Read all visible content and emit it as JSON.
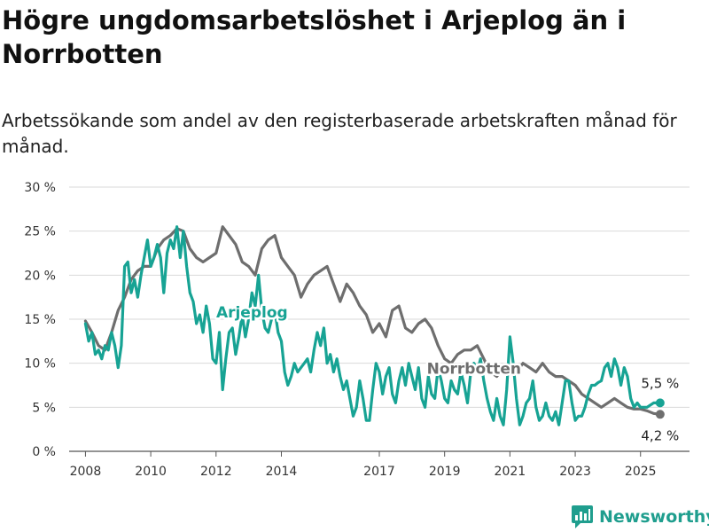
{
  "title": "Högre ungdomsarbetslöshet i Arjeplog än i Norrbotten",
  "subtitle": "Arbetssökande som andel av den registerbaserade arbetskraften månad för månad.",
  "brand": {
    "name": "Newsworthy",
    "icon": "newsworthy-logo-icon",
    "color": "#1f9e8e"
  },
  "chart_data": {
    "type": "line",
    "title": "Högre ungdomsarbetslöshet i Arjeplog än i Norrbotten",
    "subtitle": "Arbetssökande som andel av den registerbaserade arbetskraften månad för månad.",
    "xlabel": "",
    "ylabel": "",
    "xlim": [
      2007.5,
      2026.5
    ],
    "ylim": [
      0,
      30
    ],
    "yticks": [
      0,
      5,
      10,
      15,
      20,
      25,
      30
    ],
    "ytick_labels": [
      "0 %",
      "5 %",
      "10 %",
      "15 %",
      "20 %",
      "25 %",
      "30 %"
    ],
    "xticks": [
      2008,
      2010,
      2012,
      2014,
      2017,
      2019,
      2021,
      2023,
      2025
    ],
    "xtick_labels": [
      "2008",
      "2010",
      "2012",
      "2014",
      "2017",
      "2019",
      "2021",
      "2023",
      "2025"
    ],
    "grid": true,
    "series": [
      {
        "name": "Norrbotten",
        "color": "#6e6e6e",
        "end_label": "4,2 %",
        "points": [
          [
            2008.0,
            14.8
          ],
          [
            2008.2,
            13.5
          ],
          [
            2008.4,
            12.0
          ],
          [
            2008.6,
            11.5
          ],
          [
            2008.8,
            13.5
          ],
          [
            2009.0,
            16.0
          ],
          [
            2009.2,
            17.5
          ],
          [
            2009.4,
            19.5
          ],
          [
            2009.6,
            20.5
          ],
          [
            2009.8,
            21.0
          ],
          [
            2010.0,
            21.0
          ],
          [
            2010.2,
            23.0
          ],
          [
            2010.4,
            24.0
          ],
          [
            2010.6,
            24.5
          ],
          [
            2010.8,
            25.3
          ],
          [
            2011.0,
            25.0
          ],
          [
            2011.2,
            23.0
          ],
          [
            2011.4,
            22.0
          ],
          [
            2011.6,
            21.5
          ],
          [
            2011.8,
            22.0
          ],
          [
            2012.0,
            22.5
          ],
          [
            2012.2,
            25.5
          ],
          [
            2012.4,
            24.5
          ],
          [
            2012.6,
            23.5
          ],
          [
            2012.8,
            21.5
          ],
          [
            2013.0,
            21.0
          ],
          [
            2013.2,
            20.0
          ],
          [
            2013.4,
            23.0
          ],
          [
            2013.6,
            24.0
          ],
          [
            2013.8,
            24.5
          ],
          [
            2014.0,
            22.0
          ],
          [
            2014.2,
            21.0
          ],
          [
            2014.4,
            20.0
          ],
          [
            2014.6,
            17.5
          ],
          [
            2014.8,
            19.0
          ],
          [
            2015.0,
            20.0
          ],
          [
            2015.2,
            20.5
          ],
          [
            2015.4,
            21.0
          ],
          [
            2015.6,
            19.0
          ],
          [
            2015.8,
            17.0
          ],
          [
            2016.0,
            19.0
          ],
          [
            2016.2,
            18.0
          ],
          [
            2016.4,
            16.5
          ],
          [
            2016.6,
            15.5
          ],
          [
            2016.8,
            13.5
          ],
          [
            2017.0,
            14.5
          ],
          [
            2017.2,
            13.0
          ],
          [
            2017.4,
            16.0
          ],
          [
            2017.6,
            16.5
          ],
          [
            2017.8,
            14.0
          ],
          [
            2018.0,
            13.5
          ],
          [
            2018.2,
            14.5
          ],
          [
            2018.4,
            15.0
          ],
          [
            2018.6,
            14.0
          ],
          [
            2018.8,
            12.0
          ],
          [
            2019.0,
            10.5
          ],
          [
            2019.2,
            10.0
          ],
          [
            2019.4,
            11.0
          ],
          [
            2019.6,
            11.5
          ],
          [
            2019.8,
            11.5
          ],
          [
            2020.0,
            12.0
          ],
          [
            2020.2,
            10.5
          ],
          [
            2020.4,
            9.0
          ],
          [
            2020.6,
            8.5
          ],
          [
            2020.8,
            9.5
          ],
          [
            2021.0,
            9.5
          ],
          [
            2021.2,
            9.0
          ],
          [
            2021.4,
            10.0
          ],
          [
            2021.6,
            9.5
          ],
          [
            2021.8,
            9.0
          ],
          [
            2022.0,
            10.0
          ],
          [
            2022.2,
            9.0
          ],
          [
            2022.4,
            8.5
          ],
          [
            2022.6,
            8.5
          ],
          [
            2022.8,
            8.0
          ],
          [
            2023.0,
            7.5
          ],
          [
            2023.2,
            6.5
          ],
          [
            2023.4,
            6.0
          ],
          [
            2023.6,
            5.5
          ],
          [
            2023.8,
            5.0
          ],
          [
            2024.0,
            5.5
          ],
          [
            2024.2,
            6.0
          ],
          [
            2024.4,
            5.5
          ],
          [
            2024.6,
            5.0
          ],
          [
            2024.8,
            4.8
          ],
          [
            2025.0,
            4.8
          ],
          [
            2025.2,
            4.6
          ],
          [
            2025.4,
            4.3
          ],
          [
            2025.6,
            4.2
          ]
        ]
      },
      {
        "name": "Arjeplog",
        "color": "#17a394",
        "end_label": "5,5 %",
        "points": [
          [
            2008.0,
            14.5
          ],
          [
            2008.1,
            12.5
          ],
          [
            2008.2,
            13.5
          ],
          [
            2008.3,
            11.0
          ],
          [
            2008.4,
            11.5
          ],
          [
            2008.5,
            10.5
          ],
          [
            2008.6,
            12.0
          ],
          [
            2008.7,
            11.5
          ],
          [
            2008.8,
            13.5
          ],
          [
            2008.9,
            12.0
          ],
          [
            2009.0,
            9.5
          ],
          [
            2009.1,
            12.0
          ],
          [
            2009.2,
            21.0
          ],
          [
            2009.3,
            21.5
          ],
          [
            2009.4,
            18.0
          ],
          [
            2009.5,
            19.5
          ],
          [
            2009.6,
            17.5
          ],
          [
            2009.7,
            20.0
          ],
          [
            2009.8,
            22.0
          ],
          [
            2009.9,
            24.0
          ],
          [
            2010.0,
            21.0
          ],
          [
            2010.1,
            22.0
          ],
          [
            2010.2,
            23.5
          ],
          [
            2010.3,
            22.0
          ],
          [
            2010.4,
            18.0
          ],
          [
            2010.5,
            22.5
          ],
          [
            2010.6,
            24.0
          ],
          [
            2010.7,
            23.0
          ],
          [
            2010.8,
            25.5
          ],
          [
            2010.9,
            22.0
          ],
          [
            2011.0,
            25.0
          ],
          [
            2011.1,
            21.0
          ],
          [
            2011.2,
            18.0
          ],
          [
            2011.3,
            17.0
          ],
          [
            2011.4,
            14.5
          ],
          [
            2011.5,
            15.5
          ],
          [
            2011.6,
            13.5
          ],
          [
            2011.7,
            16.5
          ],
          [
            2011.8,
            14.5
          ],
          [
            2011.9,
            10.5
          ],
          [
            2012.0,
            10.0
          ],
          [
            2012.1,
            13.5
          ],
          [
            2012.2,
            7.0
          ],
          [
            2012.3,
            10.5
          ],
          [
            2012.4,
            13.5
          ],
          [
            2012.5,
            14.0
          ],
          [
            2012.6,
            11.0
          ],
          [
            2012.7,
            13.0
          ],
          [
            2012.8,
            15.5
          ],
          [
            2012.9,
            13.0
          ],
          [
            2013.0,
            15.0
          ],
          [
            2013.1,
            18.0
          ],
          [
            2013.2,
            16.5
          ],
          [
            2013.3,
            20.0
          ],
          [
            2013.4,
            16.0
          ],
          [
            2013.5,
            14.0
          ],
          [
            2013.6,
            13.5
          ],
          [
            2013.7,
            15.0
          ],
          [
            2013.8,
            16.0
          ],
          [
            2013.9,
            13.5
          ],
          [
            2014.0,
            12.5
          ],
          [
            2014.1,
            9.0
          ],
          [
            2014.2,
            7.5
          ],
          [
            2014.3,
            8.5
          ],
          [
            2014.4,
            10.0
          ],
          [
            2014.5,
            9.0
          ],
          [
            2014.6,
            9.5
          ],
          [
            2014.7,
            10.0
          ],
          [
            2014.8,
            10.5
          ],
          [
            2014.9,
            9.0
          ],
          [
            2015.0,
            11.5
          ],
          [
            2015.1,
            13.5
          ],
          [
            2015.2,
            12.0
          ],
          [
            2015.3,
            14.0
          ],
          [
            2015.4,
            10.0
          ],
          [
            2015.5,
            11.0
          ],
          [
            2015.6,
            9.0
          ],
          [
            2015.7,
            10.5
          ],
          [
            2015.8,
            8.5
          ],
          [
            2015.9,
            7.0
          ],
          [
            2016.0,
            8.0
          ],
          [
            2016.1,
            6.0
          ],
          [
            2016.2,
            4.0
          ],
          [
            2016.3,
            5.0
          ],
          [
            2016.4,
            8.0
          ],
          [
            2016.5,
            6.0
          ],
          [
            2016.6,
            3.5
          ],
          [
            2016.7,
            3.5
          ],
          [
            2016.8,
            7.0
          ],
          [
            2016.9,
            10.0
          ],
          [
            2017.0,
            9.0
          ],
          [
            2017.1,
            6.5
          ],
          [
            2017.2,
            8.5
          ],
          [
            2017.3,
            9.5
          ],
          [
            2017.4,
            6.5
          ],
          [
            2017.5,
            5.5
          ],
          [
            2017.6,
            8.0
          ],
          [
            2017.7,
            9.5
          ],
          [
            2017.8,
            7.5
          ],
          [
            2017.9,
            10.0
          ],
          [
            2018.0,
            8.5
          ],
          [
            2018.1,
            7.0
          ],
          [
            2018.2,
            9.5
          ],
          [
            2018.3,
            6.0
          ],
          [
            2018.4,
            5.0
          ],
          [
            2018.5,
            8.5
          ],
          [
            2018.6,
            6.5
          ],
          [
            2018.7,
            6.0
          ],
          [
            2018.8,
            9.5
          ],
          [
            2018.9,
            8.0
          ],
          [
            2019.0,
            6.0
          ],
          [
            2019.1,
            5.5
          ],
          [
            2019.2,
            8.0
          ],
          [
            2019.3,
            7.0
          ],
          [
            2019.4,
            6.5
          ],
          [
            2019.5,
            9.0
          ],
          [
            2019.6,
            7.5
          ],
          [
            2019.7,
            5.5
          ],
          [
            2019.8,
            9.0
          ],
          [
            2019.9,
            10.0
          ],
          [
            2020.0,
            9.0
          ],
          [
            2020.1,
            10.5
          ],
          [
            2020.2,
            8.0
          ],
          [
            2020.3,
            6.0
          ],
          [
            2020.4,
            4.5
          ],
          [
            2020.5,
            3.5
          ],
          [
            2020.6,
            6.0
          ],
          [
            2020.7,
            4.0
          ],
          [
            2020.8,
            3.0
          ],
          [
            2020.9,
            7.0
          ],
          [
            2021.0,
            13.0
          ],
          [
            2021.1,
            10.0
          ],
          [
            2021.2,
            6.0
          ],
          [
            2021.3,
            3.0
          ],
          [
            2021.4,
            4.0
          ],
          [
            2021.5,
            5.5
          ],
          [
            2021.6,
            6.0
          ],
          [
            2021.7,
            8.0
          ],
          [
            2021.8,
            5.0
          ],
          [
            2021.9,
            3.5
          ],
          [
            2022.0,
            4.0
          ],
          [
            2022.1,
            5.5
          ],
          [
            2022.2,
            4.0
          ],
          [
            2022.3,
            3.5
          ],
          [
            2022.4,
            4.5
          ],
          [
            2022.5,
            3.0
          ],
          [
            2022.6,
            5.5
          ],
          [
            2022.7,
            8.0
          ],
          [
            2022.8,
            8.0
          ],
          [
            2022.9,
            5.5
          ],
          [
            2023.0,
            3.5
          ],
          [
            2023.1,
            4.0
          ],
          [
            2023.2,
            4.0
          ],
          [
            2023.3,
            5.0
          ],
          [
            2023.4,
            6.5
          ],
          [
            2023.5,
            7.5
          ],
          [
            2023.6,
            7.5
          ],
          [
            2023.7,
            7.8
          ],
          [
            2023.8,
            8.0
          ],
          [
            2023.9,
            9.5
          ],
          [
            2024.0,
            10.0
          ],
          [
            2024.1,
            8.5
          ],
          [
            2024.2,
            10.5
          ],
          [
            2024.3,
            9.5
          ],
          [
            2024.4,
            7.5
          ],
          [
            2024.5,
            9.5
          ],
          [
            2024.6,
            8.5
          ],
          [
            2024.7,
            6.0
          ],
          [
            2024.8,
            5.0
          ],
          [
            2024.9,
            5.5
          ],
          [
            2025.0,
            5.0
          ],
          [
            2025.2,
            5.0
          ],
          [
            2025.4,
            5.5
          ],
          [
            2025.6,
            5.5
          ]
        ]
      }
    ],
    "series_labels": [
      {
        "series": "Arjeplog",
        "text": "Arjeplog",
        "x": 2013.1,
        "y": 15.2
      },
      {
        "series": "Norrbotten",
        "text": "Norrbotten",
        "x": 2019.9,
        "y": 8.8
      }
    ]
  }
}
